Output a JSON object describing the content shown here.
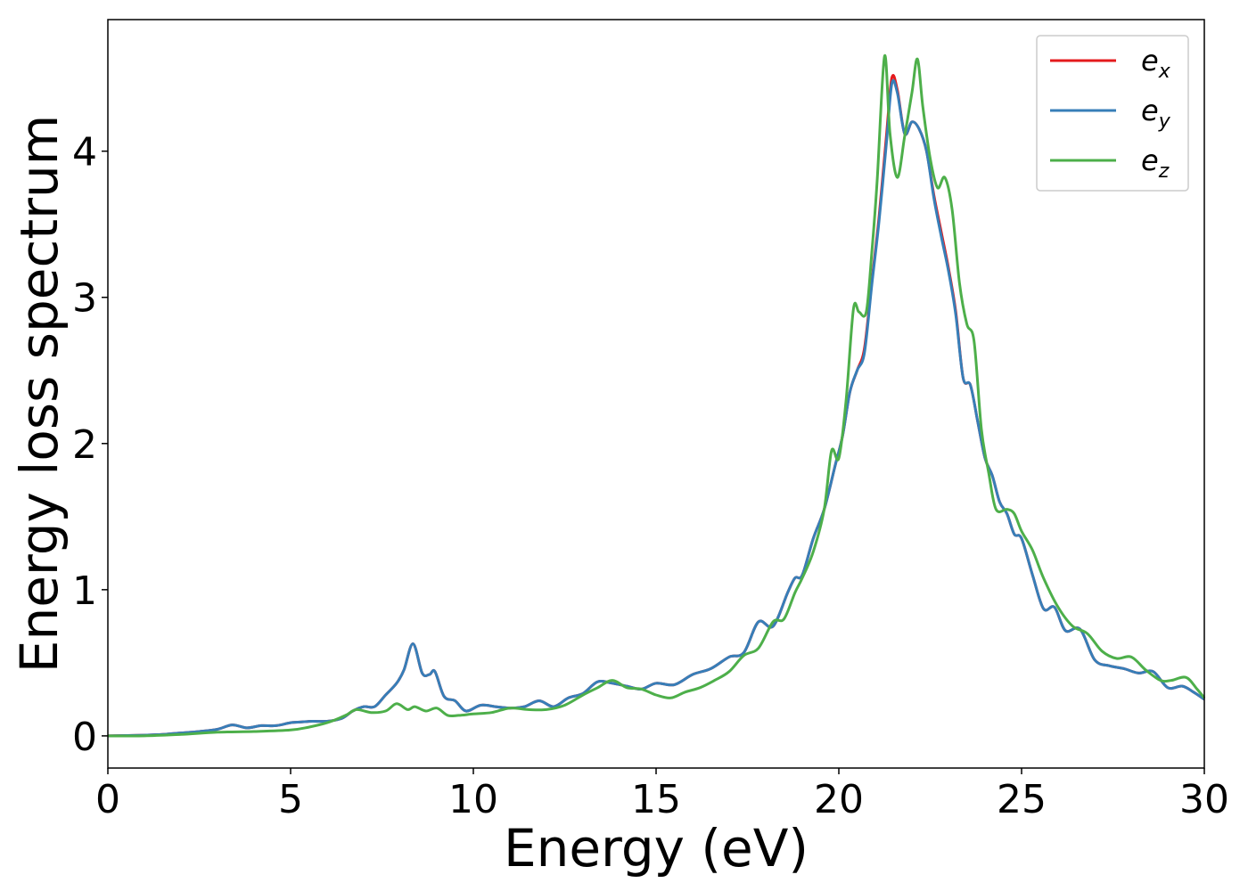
{
  "chart_data": {
    "type": "line",
    "title": "",
    "xlabel": "Energy (eV)",
    "ylabel": "Energy loss spectrum",
    "xlim": [
      0,
      30
    ],
    "ylim": [
      -0.22,
      4.9
    ],
    "xticks": [
      0,
      5,
      10,
      15,
      20,
      25,
      30
    ],
    "yticks": [
      0,
      1,
      2,
      3,
      4
    ],
    "grid": false,
    "legend_position": "top-right",
    "series": [
      {
        "name": "e_x",
        "label_base": "e",
        "label_sub": "x",
        "color": "#e41a1c",
        "x": [
          0,
          1,
          1.5,
          2,
          2.5,
          3,
          3.4,
          3.8,
          4.2,
          4.6,
          5,
          5.3,
          5.6,
          6,
          6.4,
          6.7,
          7,
          7.3,
          7.6,
          7.9,
          8.1,
          8.35,
          8.6,
          8.8,
          8.95,
          9.2,
          9.5,
          9.8,
          10.2,
          10.6,
          11,
          11.4,
          11.8,
          12.2,
          12.6,
          13,
          13.4,
          13.8,
          14.2,
          14.6,
          15,
          15.5,
          16,
          16.5,
          17,
          17.4,
          17.8,
          18.2,
          18.6,
          18.8,
          19,
          19.3,
          19.6,
          19.9,
          20.1,
          20.3,
          20.5,
          20.7,
          20.9,
          21.1,
          21.3,
          21.45,
          21.6,
          21.8,
          22.0,
          22.2,
          22.4,
          22.6,
          22.8,
          23.0,
          23.2,
          23.4,
          23.6,
          23.8,
          24.0,
          24.2,
          24.4,
          24.6,
          24.8,
          25.0,
          25.3,
          25.6,
          25.9,
          26.2,
          26.6,
          27,
          27.4,
          27.8,
          28.2,
          28.6,
          29,
          29.4,
          29.7,
          30
        ],
        "y": [
          0,
          0.005,
          0.01,
          0.02,
          0.03,
          0.045,
          0.075,
          0.055,
          0.07,
          0.07,
          0.09,
          0.095,
          0.1,
          0.1,
          0.12,
          0.17,
          0.2,
          0.2,
          0.28,
          0.36,
          0.45,
          0.63,
          0.43,
          0.42,
          0.44,
          0.27,
          0.24,
          0.17,
          0.21,
          0.2,
          0.19,
          0.2,
          0.24,
          0.2,
          0.26,
          0.29,
          0.37,
          0.36,
          0.34,
          0.32,
          0.36,
          0.35,
          0.42,
          0.46,
          0.54,
          0.57,
          0.78,
          0.75,
          0.98,
          1.08,
          1.1,
          1.35,
          1.55,
          1.85,
          2.05,
          2.35,
          2.5,
          2.65,
          3.1,
          3.55,
          4.1,
          4.5,
          4.42,
          4.12,
          4.2,
          4.15,
          4.0,
          3.7,
          3.45,
          3.2,
          2.9,
          2.45,
          2.4,
          2.15,
          1.9,
          1.78,
          1.6,
          1.52,
          1.38,
          1.35,
          1.1,
          0.87,
          0.88,
          0.72,
          0.73,
          0.52,
          0.48,
          0.46,
          0.43,
          0.44,
          0.33,
          0.34,
          0.3,
          0.25
        ]
      },
      {
        "name": "e_y",
        "label_base": "e",
        "label_sub": "y",
        "color": "#377eb8",
        "x": [
          0,
          1,
          1.5,
          2,
          2.5,
          3,
          3.4,
          3.8,
          4.2,
          4.6,
          5,
          5.3,
          5.6,
          6,
          6.4,
          6.7,
          7,
          7.3,
          7.6,
          7.9,
          8.1,
          8.35,
          8.6,
          8.8,
          8.95,
          9.2,
          9.5,
          9.8,
          10.2,
          10.6,
          11,
          11.4,
          11.8,
          12.2,
          12.6,
          13,
          13.4,
          13.8,
          14.2,
          14.6,
          15,
          15.5,
          16,
          16.5,
          17,
          17.4,
          17.8,
          18.2,
          18.6,
          18.8,
          19,
          19.3,
          19.6,
          19.9,
          20.1,
          20.3,
          20.5,
          20.7,
          20.9,
          21.1,
          21.3,
          21.45,
          21.6,
          21.8,
          22.0,
          22.2,
          22.4,
          22.6,
          22.8,
          23.0,
          23.2,
          23.4,
          23.6,
          23.8,
          24.0,
          24.2,
          24.4,
          24.6,
          24.8,
          25.0,
          25.3,
          25.6,
          25.9,
          26.2,
          26.6,
          27,
          27.4,
          27.8,
          28.2,
          28.6,
          29,
          29.4,
          29.7,
          30
        ],
        "y": [
          0,
          0.005,
          0.01,
          0.02,
          0.03,
          0.045,
          0.075,
          0.055,
          0.07,
          0.07,
          0.09,
          0.095,
          0.1,
          0.1,
          0.12,
          0.17,
          0.2,
          0.2,
          0.28,
          0.36,
          0.45,
          0.63,
          0.43,
          0.42,
          0.44,
          0.27,
          0.24,
          0.17,
          0.21,
          0.2,
          0.19,
          0.2,
          0.24,
          0.2,
          0.26,
          0.29,
          0.37,
          0.36,
          0.34,
          0.32,
          0.36,
          0.35,
          0.42,
          0.46,
          0.54,
          0.57,
          0.78,
          0.75,
          0.98,
          1.08,
          1.1,
          1.35,
          1.55,
          1.85,
          2.05,
          2.35,
          2.5,
          2.62,
          3.08,
          3.52,
          4.05,
          4.46,
          4.4,
          4.12,
          4.2,
          4.15,
          4.0,
          3.68,
          3.42,
          3.18,
          2.88,
          2.45,
          2.4,
          2.15,
          1.9,
          1.78,
          1.6,
          1.52,
          1.38,
          1.35,
          1.1,
          0.87,
          0.88,
          0.72,
          0.73,
          0.52,
          0.48,
          0.46,
          0.43,
          0.44,
          0.33,
          0.34,
          0.3,
          0.25
        ]
      },
      {
        "name": "e_z",
        "label_base": "e",
        "label_sub": "z",
        "color": "#4daf4a",
        "x": [
          0,
          1,
          2,
          3,
          4,
          5,
          5.5,
          6,
          6.5,
          6.8,
          7.2,
          7.6,
          7.9,
          8.2,
          8.4,
          8.7,
          9,
          9.3,
          9.6,
          10,
          10.5,
          11,
          11.5,
          12,
          12.5,
          13,
          13.4,
          13.8,
          14.2,
          14.6,
          15,
          15.4,
          15.8,
          16.2,
          16.6,
          17,
          17.4,
          17.8,
          18.2,
          18.5,
          18.8,
          19.0,
          19.3,
          19.6,
          19.8,
          20.0,
          20.2,
          20.4,
          20.55,
          20.75,
          20.9,
          21.05,
          21.25,
          21.4,
          21.6,
          21.8,
          22.0,
          22.15,
          22.3,
          22.5,
          22.7,
          22.9,
          23.1,
          23.3,
          23.5,
          23.7,
          23.9,
          24.1,
          24.3,
          24.6,
          24.8,
          25.0,
          25.3,
          25.6,
          26,
          26.4,
          26.8,
          27.2,
          27.6,
          28,
          28.4,
          28.8,
          29.1,
          29.5,
          29.8,
          30
        ],
        "y": [
          0,
          0,
          0.01,
          0.025,
          0.03,
          0.04,
          0.06,
          0.09,
          0.14,
          0.18,
          0.16,
          0.17,
          0.22,
          0.18,
          0.2,
          0.17,
          0.19,
          0.14,
          0.14,
          0.15,
          0.16,
          0.19,
          0.18,
          0.18,
          0.21,
          0.28,
          0.33,
          0.38,
          0.33,
          0.32,
          0.28,
          0.26,
          0.3,
          0.33,
          0.38,
          0.44,
          0.55,
          0.6,
          0.78,
          0.8,
          0.98,
          1.08,
          1.26,
          1.55,
          1.95,
          1.9,
          2.3,
          2.92,
          2.9,
          2.9,
          3.3,
          3.8,
          4.65,
          4.12,
          3.82,
          4.1,
          4.4,
          4.63,
          4.3,
          3.95,
          3.75,
          3.82,
          3.6,
          3.1,
          2.82,
          2.7,
          2.1,
          1.8,
          1.55,
          1.55,
          1.52,
          1.4,
          1.27,
          1.08,
          0.88,
          0.75,
          0.7,
          0.58,
          0.53,
          0.54,
          0.45,
          0.38,
          0.38,
          0.4,
          0.32,
          0.26
        ]
      }
    ]
  }
}
